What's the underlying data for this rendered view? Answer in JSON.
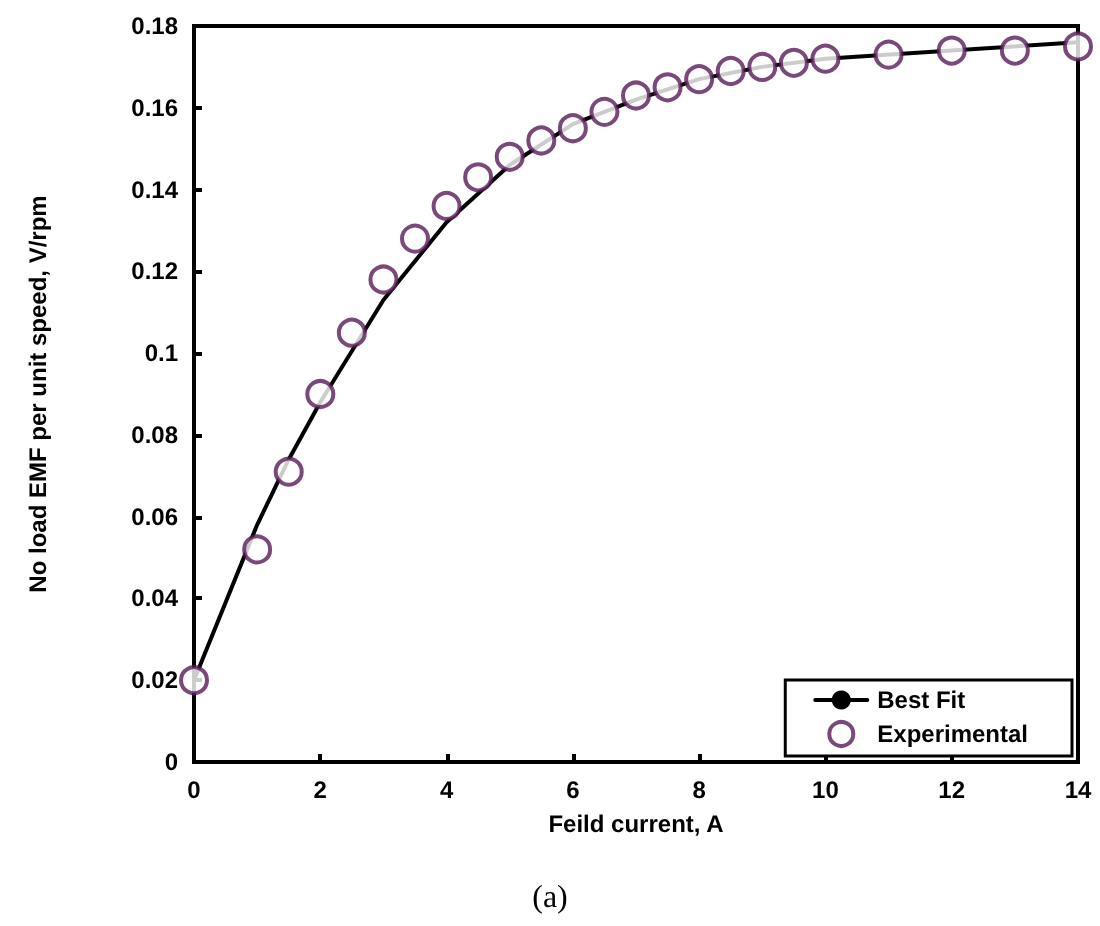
{
  "chart_data": {
    "type": "line",
    "xlabel": "Feild current, A",
    "ylabel": "No load EMF per unit speed, V/rpm",
    "annotations": [
      "(a)"
    ],
    "xlim": [
      0,
      14
    ],
    "xticks": [
      0,
      2,
      4,
      6,
      8,
      10,
      12,
      14
    ],
    "ylim": [
      0,
      0.18
    ],
    "yticks": [
      0,
      0.02,
      0.04,
      0.06,
      0.08,
      0.1,
      0.12,
      0.14,
      0.16,
      0.18
    ],
    "grid": false,
    "legend": "bottom right",
    "series": [
      {
        "name": "Best Fit",
        "color": "#000000",
        "marker": "none",
        "line_style": "solid",
        "x": [
          0,
          1,
          1.5,
          2,
          3,
          4,
          5,
          6,
          7,
          8,
          9,
          10,
          12,
          14
        ],
        "values": [
          0.02,
          0.058,
          0.074,
          0.088,
          0.113,
          0.132,
          0.146,
          0.156,
          0.162,
          0.167,
          0.17,
          0.172,
          0.174,
          0.176
        ]
      },
      {
        "name": "Experimental",
        "type": "scatter",
        "color": "#5a1a5a",
        "marker": "circle",
        "x": [
          0,
          1,
          1.5,
          2,
          2.5,
          3,
          3.5,
          4,
          4.5,
          5,
          5.5,
          6,
          6.5,
          7,
          7.5,
          8,
          8.5,
          9,
          9.5,
          10,
          11,
          12,
          13,
          14
        ],
        "values": [
          0.02,
          0.052,
          0.071,
          0.09,
          0.105,
          0.118,
          0.128,
          0.136,
          0.143,
          0.148,
          0.152,
          0.155,
          0.159,
          0.163,
          0.165,
          0.167,
          0.169,
          0.17,
          0.171,
          0.172,
          0.173,
          0.174,
          0.174,
          0.175
        ]
      }
    ]
  }
}
